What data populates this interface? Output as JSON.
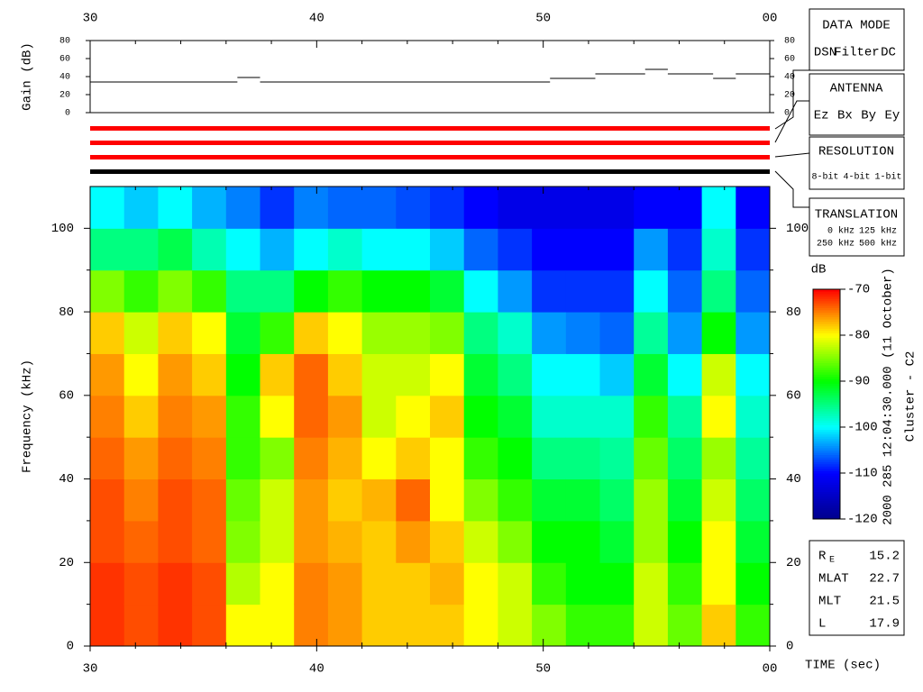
{
  "chart_data": {
    "type": "spectrogram",
    "xlim": [
      30,
      60
    ],
    "xticks": [
      30,
      40,
      50,
      {
        "value": 60,
        "label": "00"
      }
    ],
    "xlabel": "TIME (sec)",
    "ylim": [
      0,
      110
    ],
    "yticks": [
      0,
      20,
      40,
      60,
      80,
      100
    ],
    "ylabel": "Frequency (kHz)",
    "zlim": [
      -120,
      -70
    ],
    "zticks": [
      -70,
      -80,
      -90,
      -100,
      -110,
      -120
    ],
    "zlabel": "dB",
    "colormap": [
      "#00008b",
      "#0000ff",
      "#00ffff",
      "#00ff00",
      "#ffff00",
      "#ff0000"
    ],
    "time_edges": [
      30,
      31.5,
      33,
      34.5,
      36,
      37.5,
      39,
      40.5,
      42,
      43.5,
      45,
      46.5,
      48,
      49.5,
      51,
      52.5,
      54,
      55.5,
      57,
      58.5,
      60
    ],
    "freq_edges": [
      0,
      10,
      20,
      30,
      40,
      50,
      60,
      70,
      80,
      90,
      100,
      110
    ],
    "values": [
      [
        -72,
        -72,
        -73,
        -73,
        -74,
        -75,
        -76,
        -78,
        -85,
        -95,
        -100
      ],
      [
        -73,
        -73,
        -74,
        -75,
        -76,
        -78,
        -80,
        -82,
        -88,
        -95,
        -102
      ],
      [
        -72,
        -72,
        -73,
        -73,
        -74,
        -75,
        -76,
        -78,
        -85,
        -93,
        -100
      ],
      [
        -73,
        -73,
        -74,
        -74,
        -75,
        -76,
        -78,
        -80,
        -88,
        -97,
        -103
      ],
      [
        -80,
        -83,
        -85,
        -86,
        -88,
        -88,
        -90,
        -92,
        -95,
        -100,
        -105
      ],
      [
        -80,
        -80,
        -82,
        -82,
        -85,
        -80,
        -78,
        -88,
        -95,
        -103,
        -108
      ],
      [
        -75,
        -75,
        -76,
        -76,
        -75,
        -74,
        -74,
        -78,
        -90,
        -100,
        -105
      ],
      [
        -76,
        -76,
        -77,
        -78,
        -77,
        -76,
        -78,
        -80,
        -88,
        -98,
        -106
      ],
      [
        -78,
        -78,
        -78,
        -77,
        -80,
        -82,
        -82,
        -84,
        -90,
        -100,
        -106
      ],
      [
        -78,
        -78,
        -76,
        -74,
        -78,
        -80,
        -82,
        -84,
        -90,
        -100,
        -107
      ],
      [
        -78,
        -77,
        -78,
        -80,
        -80,
        -78,
        -80,
        -85,
        -92,
        -102,
        -108
      ],
      [
        -80,
        -80,
        -82,
        -85,
        -88,
        -90,
        -92,
        -95,
        -100,
        -106,
        -110
      ],
      [
        -82,
        -82,
        -85,
        -88,
        -90,
        -92,
        -95,
        -98,
        -104,
        -108,
        -112
      ],
      [
        -85,
        -88,
        -90,
        -92,
        -95,
        -98,
        -100,
        -104,
        -108,
        -110,
        -112
      ],
      [
        -88,
        -90,
        -90,
        -92,
        -95,
        -98,
        -100,
        -105,
        -108,
        -110,
        -112
      ],
      [
        -88,
        -90,
        -92,
        -94,
        -96,
        -98,
        -102,
        -106,
        -108,
        -110,
        -112
      ],
      [
        -82,
        -82,
        -84,
        -84,
        -86,
        -88,
        -92,
        -96,
        -100,
        -104,
        -110
      ],
      [
        -86,
        -88,
        -90,
        -92,
        -94,
        -96,
        -100,
        -104,
        -106,
        -108,
        -110
      ],
      [
        -78,
        -80,
        -80,
        -82,
        -84,
        -80,
        -82,
        -90,
        -95,
        -98,
        -100
      ],
      [
        -88,
        -90,
        -92,
        -94,
        -96,
        -98,
        -100,
        -104,
        -106,
        -108,
        -110
      ]
    ],
    "gain": {
      "ylabel": "Gain (dB)",
      "ylim": [
        0,
        80
      ],
      "yticks": [
        0,
        20,
        40,
        60,
        80
      ],
      "edges": [
        30,
        36.5,
        37.5,
        50.3,
        52.3,
        54.5,
        55.5,
        57.5,
        58.5,
        60
      ],
      "values": [
        34,
        39,
        34,
        38,
        43,
        48,
        43,
        38,
        43
      ]
    },
    "mode_bars": [
      {
        "color": "#ff0000"
      },
      {
        "color": "#ff0000"
      },
      {
        "color": "#ff0000"
      },
      {
        "color": "#000000"
      }
    ],
    "legends": [
      {
        "title": "DATA MODE",
        "items": [
          {
            "label": "DSN",
            "color": "#ff0000"
          },
          {
            "label": "Filter",
            "color": "#00ff00"
          },
          {
            "label": "DC",
            "color": "#0000ff"
          }
        ]
      },
      {
        "title": "ANTENNA",
        "items": [
          {
            "label": "Ez",
            "color": "#ff0000"
          },
          {
            "label": "Bx",
            "color": "#00cc00"
          },
          {
            "label": "By",
            "color": "#0000ff"
          },
          {
            "label": "Ey",
            "color": "#000000"
          }
        ]
      },
      {
        "title": "RESOLUTION",
        "items": [
          {
            "label": "8-bit",
            "color": "#ff0000"
          },
          {
            "label": "4-bit",
            "color": "#00cc00"
          },
          {
            "label": "1-bit",
            "color": "#0000ff"
          }
        ]
      },
      {
        "title": "TRANSLATION",
        "items": [
          {
            "label": "0 kHz",
            "color": "#ff0000"
          },
          {
            "label": "125 kHz",
            "color": "#00cc00"
          },
          {
            "label": "250 kHz",
            "color": "#0000ff"
          },
          {
            "label": "500 kHz",
            "color": "#000000"
          }
        ]
      }
    ],
    "side_text": [
      "2000 285 12:04:30.000 (11 October)",
      "Cluster - C2"
    ],
    "info": [
      {
        "label": "R",
        "sub": "E",
        "value": "15.2"
      },
      {
        "label": "MLAT",
        "value": "22.7"
      },
      {
        "label": "MLT",
        "value": "21.5"
      },
      {
        "label": "L",
        "value": "17.9"
      }
    ]
  }
}
